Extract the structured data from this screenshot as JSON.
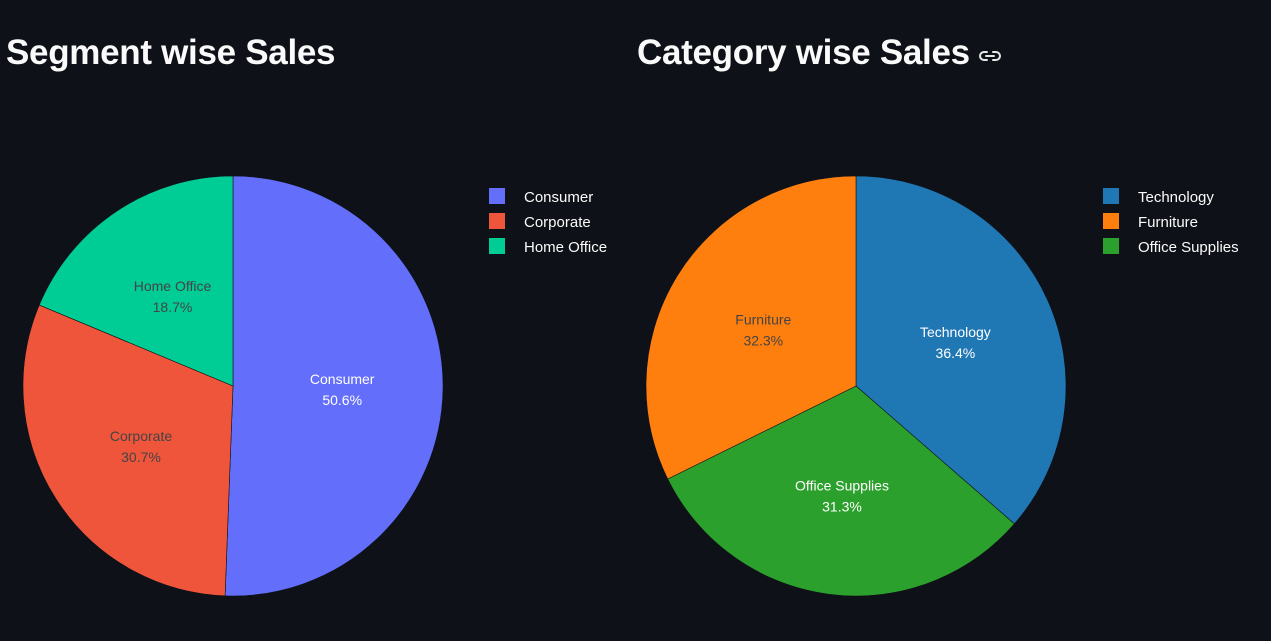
{
  "charts": [
    {
      "title": "Segment wise Sales",
      "show_link_icon": false,
      "chart_data": {
        "type": "pie",
        "title": "Segment wise Sales",
        "labels": [
          "Consumer",
          "Corporate",
          "Home Office"
        ],
        "values": [
          50.6,
          30.7,
          18.7
        ],
        "percent_labels": [
          "50.6%",
          "30.7%",
          "18.7%"
        ],
        "colors": [
          "#636efa",
          "#ef553b",
          "#00cc96"
        ],
        "label_colors": [
          "#ffffff",
          "#444444",
          "#444444"
        ],
        "direction": "clockwise",
        "start_angle_deg": 90,
        "legend": {
          "position": "top-right",
          "entries": [
            "Consumer",
            "Corporate",
            "Home Office"
          ]
        }
      }
    },
    {
      "title": "Category wise Sales",
      "show_link_icon": true,
      "chart_data": {
        "type": "pie",
        "title": "Category wise Sales",
        "labels": [
          "Technology",
          "Office Supplies",
          "Furniture"
        ],
        "values": [
          36.4,
          31.3,
          32.3
        ],
        "percent_labels": [
          "36.4%",
          "31.3%",
          "32.3%"
        ],
        "colors": [
          "#1f77b4",
          "#2ca02c",
          "#ff7f0e"
        ],
        "label_colors": [
          "#ffffff",
          "#ffffff",
          "#444444"
        ],
        "direction": "clockwise",
        "start_angle_deg": 90,
        "legend": {
          "position": "top-right",
          "entries": [
            "Technology",
            "Furniture",
            "Office Supplies"
          ],
          "entry_colors": [
            "#1f77b4",
            "#ff7f0e",
            "#2ca02c"
          ]
        }
      }
    }
  ],
  "icons": {
    "link": "link-icon"
  }
}
